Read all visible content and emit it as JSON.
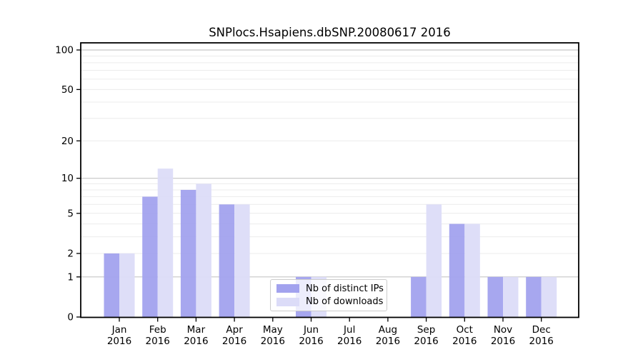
{
  "chart_data": {
    "type": "bar",
    "title": "SNPlocs.Hsapiens.dbSNP.20080617 2016",
    "categories": [
      "Jan",
      "Feb",
      "Mar",
      "Apr",
      "May",
      "Jun",
      "Jul",
      "Aug",
      "Sep",
      "Oct",
      "Nov",
      "Dec"
    ],
    "year_label": "2016",
    "series": [
      {
        "name": "Nb of distinct IPs",
        "key": "distinct-ips",
        "color": "#a2a2ee",
        "values": [
          2,
          7,
          8,
          6,
          0,
          1,
          0,
          0,
          1,
          4,
          1,
          1
        ]
      },
      {
        "name": "Nb of downloads",
        "key": "downloads",
        "color": "#dcdcf8",
        "values": [
          2,
          12,
          9,
          6,
          0,
          1,
          0,
          0,
          6,
          4,
          1,
          1
        ]
      }
    ],
    "yscale": "log1p",
    "ylim": [
      0,
      100
    ],
    "yticks": [
      0,
      1,
      2,
      5,
      10,
      20,
      50,
      100
    ],
    "grid": true,
    "legend_position": "bottom-center",
    "colors": {
      "axis": "#000000",
      "major_grid": "#c6c6c6",
      "minor_grid": "#ececec",
      "background": "#ffffff"
    }
  }
}
